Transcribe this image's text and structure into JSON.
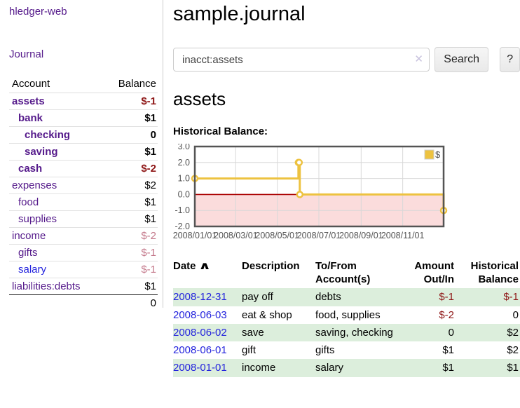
{
  "app": {
    "brand": "hledger-web"
  },
  "sidebar": {
    "nav": {
      "journal": "Journal"
    },
    "header": {
      "account": "Account",
      "balance": "Balance"
    },
    "accounts": [
      {
        "name": "assets",
        "indent": 0,
        "balance": "$-1",
        "name_class": "visited bold",
        "bal_class": "bold neg"
      },
      {
        "name": "bank",
        "indent": 1,
        "balance": "$1",
        "name_class": "visited bold",
        "bal_class": "bold"
      },
      {
        "name": "checking",
        "indent": 2,
        "balance": "0",
        "name_class": "visited bold",
        "bal_class": "bold"
      },
      {
        "name": "saving",
        "indent": 2,
        "balance": "$1",
        "name_class": "visited bold",
        "bal_class": "bold"
      },
      {
        "name": "cash",
        "indent": 1,
        "balance": "$-2",
        "name_class": "visited bold",
        "bal_class": "bold neg"
      },
      {
        "name": "expenses",
        "indent": 0,
        "balance": "$2",
        "name_class": "visited",
        "bal_class": ""
      },
      {
        "name": "food",
        "indent": 1,
        "balance": "$1",
        "name_class": "visited",
        "bal_class": ""
      },
      {
        "name": "supplies",
        "indent": 1,
        "balance": "$1",
        "name_class": "visited",
        "bal_class": ""
      },
      {
        "name": "income",
        "indent": 0,
        "balance": "$-2",
        "name_class": "visited",
        "bal_class": "negsoft"
      },
      {
        "name": "gifts",
        "indent": 1,
        "balance": "$-1",
        "name_class": "visited",
        "bal_class": "negsoft"
      },
      {
        "name": "salary",
        "indent": 1,
        "balance": "$-1",
        "name_class": "unvisited",
        "bal_class": "negsoft"
      },
      {
        "name": "liabilities:debts",
        "indent": 0,
        "balance": "$1",
        "name_class": "visited",
        "bal_class": ""
      }
    ],
    "total": "0"
  },
  "main": {
    "title": "sample.journal",
    "search": {
      "value": "inacct:assets",
      "clear_icon": "✕",
      "button": "Search",
      "help_button": "?"
    },
    "account_heading": "assets",
    "chart_label": "Historical Balance:"
  },
  "chart_data": {
    "type": "line",
    "title": "Historical Balance",
    "step": true,
    "series": [
      {
        "name": "$",
        "color": "#edc240",
        "points": [
          {
            "x": "2008-01-01",
            "y": 1
          },
          {
            "x": "2008-06-01",
            "y": 2
          },
          {
            "x": "2008-06-02",
            "y": 2
          },
          {
            "x": "2008-06-03",
            "y": 0
          },
          {
            "x": "2008-12-31",
            "y": -1
          }
        ]
      }
    ],
    "xlim": [
      "2008-01-01",
      "2008-12-31"
    ],
    "ylim": [
      -2,
      3
    ],
    "x_tick_dates": [
      "2008-01-01",
      "2008-03-01",
      "2008-05-01",
      "2008-07-01",
      "2008-09-01",
      "2008-11-01"
    ],
    "x_tick_labels": [
      "2008/01/01",
      "2008/03/01",
      "2008/05/01",
      "2008/07/01",
      "2008/09/01",
      "2008/11/01"
    ],
    "y_ticks": [
      3,
      2,
      1,
      0,
      -1,
      -2
    ],
    "y_tick_labels": [
      "3.0",
      "2.0",
      "1.0",
      "0.0",
      "-1.0",
      "-2.0"
    ],
    "grid": true,
    "legend": {
      "label": "$",
      "position": "top-right"
    },
    "colors": {
      "line": "#edc240",
      "marker_fill": "#ffffff",
      "negative_region": "#fbdcdc",
      "zero_line": "#aa0000",
      "gridline": "#d8d8d8",
      "border": "#545454",
      "tick_text": "#545454"
    }
  },
  "register": {
    "headers": {
      "date": "Date",
      "sort_icon": "∧",
      "description": "Description",
      "accounts": "To/From\nAccount(s)",
      "amount": "Amount\nOut/In",
      "balance": "Historical\nBalance"
    },
    "rows": [
      {
        "date": "2008-12-31",
        "description": "pay off",
        "accounts": "debts",
        "amount": "$-1",
        "amount_class": "neg",
        "balance": "$-1",
        "balance_class": "neg",
        "green": true
      },
      {
        "date": "2008-06-03",
        "description": "eat & shop",
        "accounts": "food, supplies",
        "amount": "$-2",
        "amount_class": "neg",
        "balance": "0",
        "balance_class": "",
        "green": false
      },
      {
        "date": "2008-06-02",
        "description": "save",
        "accounts": "saving, checking",
        "amount": "0",
        "amount_class": "",
        "balance": "$2",
        "balance_class": "",
        "green": true
      },
      {
        "date": "2008-06-01",
        "description": "gift",
        "accounts": "gifts",
        "amount": "$1",
        "amount_class": "",
        "balance": "$2",
        "balance_class": "",
        "green": false
      },
      {
        "date": "2008-01-01",
        "description": "income",
        "accounts": "salary",
        "amount": "$1",
        "amount_class": "",
        "balance": "$1",
        "balance_class": "",
        "green": true
      }
    ]
  }
}
